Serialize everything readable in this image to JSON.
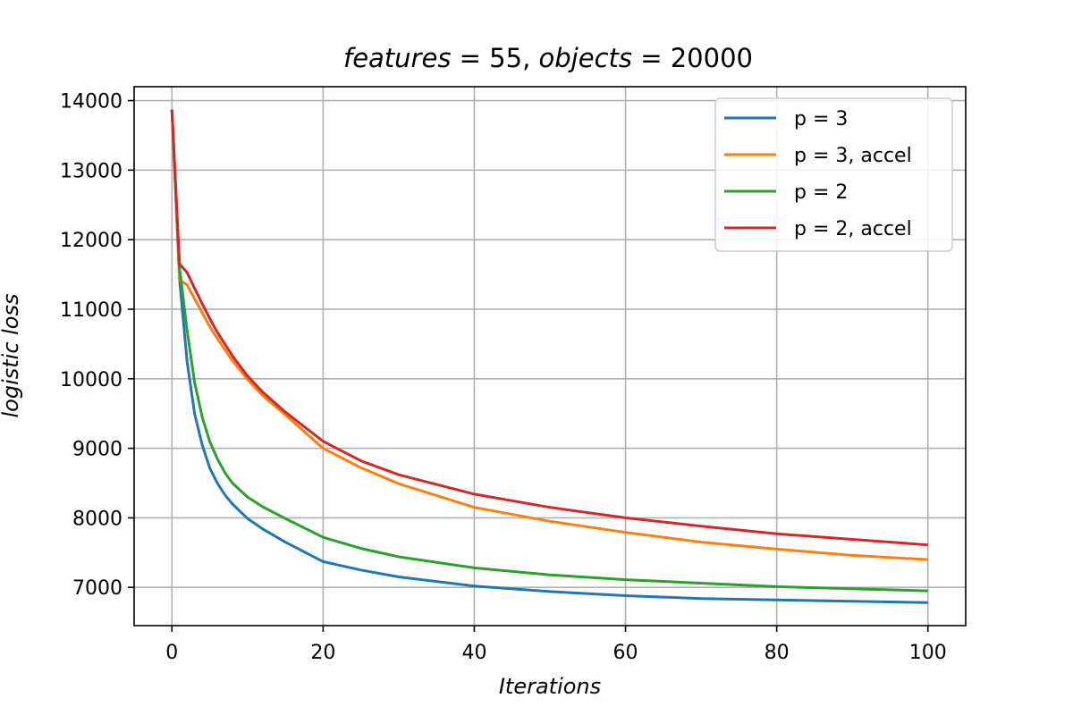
{
  "chart_data": {
    "type": "line",
    "title": "features = 55, objects = 20000",
    "title_parts": {
      "t1": "features",
      "eq1": " = 55, ",
      "t2": "objects",
      "eq2": " = 20000"
    },
    "xlabel": "Iterations",
    "ylabel": "logistic loss",
    "xlim": [
      -5,
      105
    ],
    "ylim": [
      6450,
      14200
    ],
    "xticks": [
      0,
      20,
      40,
      60,
      80,
      100
    ],
    "yticks": [
      7000,
      8000,
      9000,
      10000,
      11000,
      12000,
      13000,
      14000
    ],
    "grid": true,
    "legend_position": "top-right",
    "series": [
      {
        "name": "p = 3",
        "color": "#1f77b4",
        "x": [
          0,
          1,
          2,
          3,
          4,
          5,
          6,
          7,
          8,
          10,
          12,
          15,
          20,
          25,
          30,
          40,
          50,
          60,
          70,
          80,
          90,
          100
        ],
        "y": [
          13870,
          11450,
          10250,
          9500,
          9050,
          8720,
          8500,
          8330,
          8200,
          7990,
          7840,
          7650,
          7370,
          7250,
          7150,
          7020,
          6940,
          6880,
          6840,
          6820,
          6800,
          6780
        ]
      },
      {
        "name": "p = 3, accel",
        "color": "#ff7f0e",
        "x": [
          0,
          1,
          2,
          3,
          4,
          5,
          6,
          8,
          10,
          12,
          15,
          20,
          25,
          30,
          40,
          50,
          60,
          70,
          80,
          90,
          100
        ],
        "y": [
          13870,
          11420,
          11350,
          11150,
          10950,
          10750,
          10580,
          10260,
          9990,
          9760,
          9480,
          9000,
          8720,
          8490,
          8150,
          7950,
          7790,
          7650,
          7550,
          7460,
          7400
        ]
      },
      {
        "name": "p = 2",
        "color": "#2ca02c",
        "x": [
          0,
          1,
          2,
          3,
          4,
          5,
          6,
          7,
          8,
          10,
          12,
          15,
          20,
          25,
          30,
          40,
          50,
          60,
          70,
          80,
          90,
          100
        ],
        "y": [
          13870,
          11600,
          10700,
          9950,
          9450,
          9100,
          8850,
          8650,
          8500,
          8300,
          8160,
          7990,
          7720,
          7560,
          7440,
          7280,
          7180,
          7110,
          7060,
          7010,
          6980,
          6950
        ]
      },
      {
        "name": "p = 2, accel",
        "color": "#d62728",
        "x": [
          0,
          1,
          2,
          3,
          4,
          5,
          6,
          8,
          10,
          12,
          15,
          20,
          25,
          30,
          40,
          50,
          60,
          70,
          80,
          90,
          100
        ],
        "y": [
          13870,
          11650,
          11530,
          11300,
          11080,
          10870,
          10670,
          10330,
          10040,
          9810,
          9520,
          9100,
          8820,
          8620,
          8340,
          8150,
          8000,
          7880,
          7770,
          7690,
          7610
        ]
      }
    ]
  }
}
